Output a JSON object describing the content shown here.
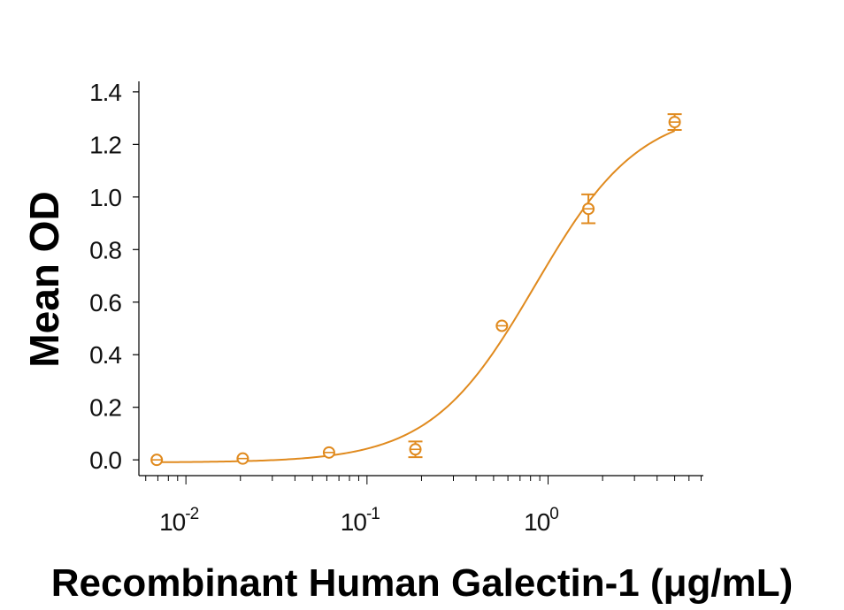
{
  "chart_data": {
    "type": "scatter",
    "title": "",
    "xlabel": "Recombinant Human Galectin-1 (μg/mL)",
    "ylabel": "Mean OD",
    "xscale": "log",
    "xlim": [
      0.0055,
      7.2
    ],
    "ylim": [
      -0.06,
      1.44
    ],
    "yticks": [
      "0.0",
      "0.2",
      "0.4",
      "0.6",
      "0.8",
      "1.0",
      "1.2",
      "1.4"
    ],
    "xticks": [
      {
        "base": "10",
        "exp": "-2",
        "value": 0.01
      },
      {
        "base": "10",
        "exp": "-1",
        "value": 0.1
      },
      {
        "base": "10",
        "exp": "0",
        "value": 1
      }
    ],
    "grid": false,
    "legend": "none",
    "color": "#E08A1E",
    "points": [
      {
        "x": 0.0069,
        "y": 0.0,
        "err": 0.0
      },
      {
        "x": 0.0206,
        "y": 0.005,
        "err": 0.0
      },
      {
        "x": 0.0617,
        "y": 0.028,
        "err": 0.0
      },
      {
        "x": 0.185,
        "y": 0.04,
        "err": 0.03
      },
      {
        "x": 0.556,
        "y": 0.51,
        "err": 0.0
      },
      {
        "x": 1.67,
        "y": 0.955,
        "err": 0.055
      },
      {
        "x": 5.0,
        "y": 1.285,
        "err": 0.03
      }
    ],
    "fit": {
      "model": "4PL",
      "bottom": -0.01,
      "top": 1.34,
      "ec50": 0.85,
      "hill": 1.5
    }
  }
}
